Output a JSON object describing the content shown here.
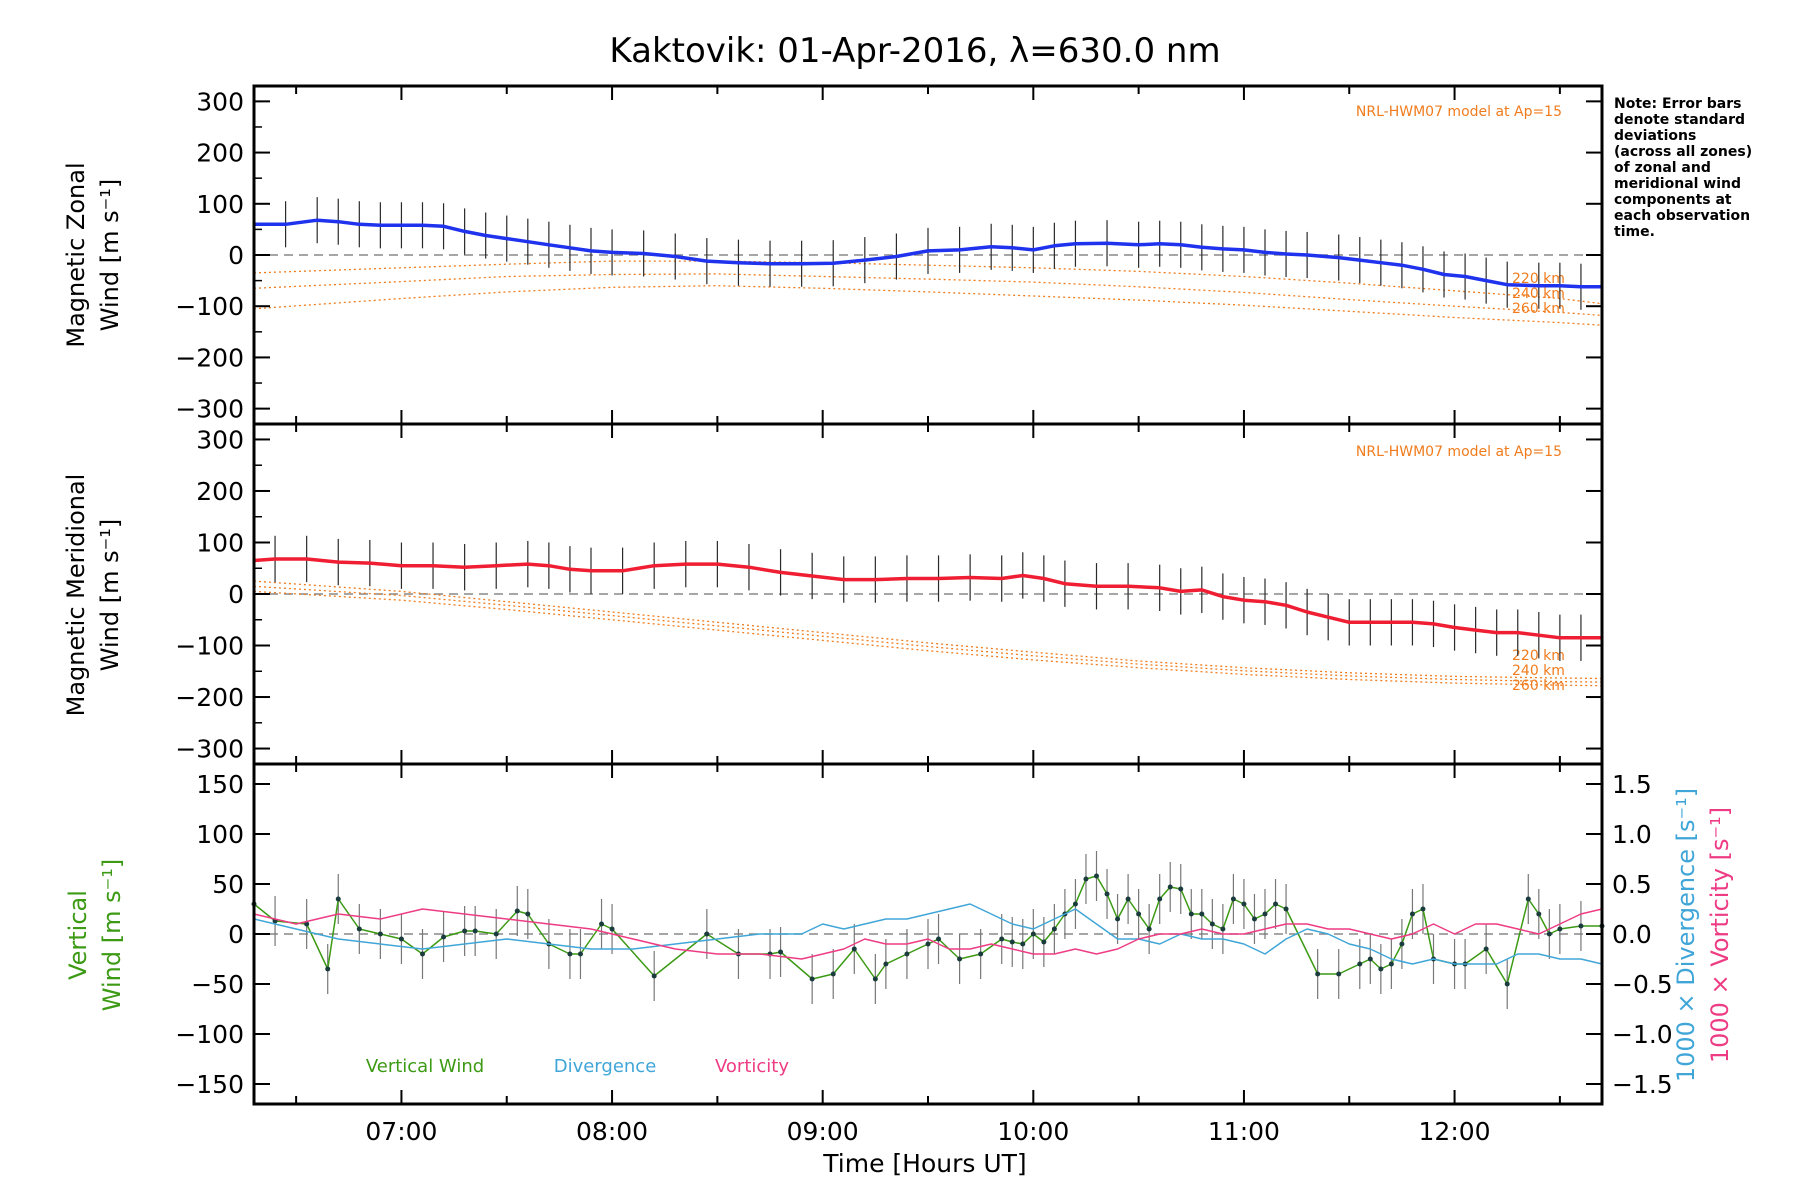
{
  "chart_data": [
    {
      "type": "line",
      "title": "Kaktovik: 01-Apr-2016, λ=630.0 nm",
      "ylabel": [
        "Magnetic Zonal",
        "Wind [m s⁻¹]"
      ],
      "ylim": [
        -330,
        330
      ],
      "yticks": [
        300,
        200,
        100,
        0,
        -100,
        -200,
        -300
      ],
      "xlim": [
        6.3,
        12.7
      ],
      "model_label": "NRL-HWM07 model at Ap=15",
      "model_alt_labels": [
        "220 km",
        "240 km",
        "260 km"
      ],
      "note": [
        "Note: Error bars",
        "denote standard",
        "deviations",
        "(across all zones)",
        "of zonal and",
        "meridional wind",
        "components at",
        "each observation",
        "time."
      ],
      "series": [
        {
          "name": "",
          "color": "#1f32ee",
          "x": [
            6.3,
            6.45,
            6.6,
            6.7,
            6.8,
            6.9,
            7.0,
            7.1,
            7.2,
            7.3,
            7.4,
            7.5,
            7.6,
            7.7,
            7.8,
            7.9,
            8.0,
            8.15,
            8.3,
            8.45,
            8.6,
            8.75,
            8.9,
            9.05,
            9.2,
            9.35,
            9.5,
            9.65,
            9.8,
            9.9,
            10.0,
            10.1,
            10.2,
            10.35,
            10.5,
            10.6,
            10.7,
            10.8,
            10.9,
            11.0,
            11.1,
            11.2,
            11.3,
            11.45,
            11.55,
            11.65,
            11.75,
            11.85,
            11.95,
            12.05,
            12.15,
            12.25,
            12.4,
            12.5,
            12.6,
            12.7
          ],
          "values": [
            60,
            60,
            68,
            65,
            60,
            58,
            58,
            58,
            56,
            46,
            38,
            32,
            26,
            20,
            14,
            8,
            5,
            3,
            -3,
            -12,
            -15,
            -17,
            -17,
            -16,
            -10,
            -3,
            8,
            10,
            16,
            14,
            10,
            18,
            22,
            23,
            20,
            22,
            20,
            15,
            12,
            10,
            5,
            2,
            0,
            -5,
            -10,
            -15,
            -20,
            -28,
            -38,
            -42,
            -50,
            -58,
            -60,
            -60,
            -62,
            -62
          ]
        }
      ],
      "model_curves": [
        {
          "name": "220 km",
          "x": [
            6.3,
            7.0,
            7.5,
            8.0,
            8.5,
            9.0,
            9.5,
            10.0,
            10.5,
            11.0,
            11.5,
            12.0,
            12.5,
            12.7
          ],
          "values": [
            -35,
            -25,
            -18,
            -12,
            -12,
            -15,
            -20,
            -25,
            -32,
            -42,
            -55,
            -70,
            -85,
            -95
          ]
        },
        {
          "name": "240 km",
          "x": [
            6.3,
            7.0,
            7.5,
            8.0,
            8.5,
            9.0,
            9.5,
            10.0,
            10.5,
            11.0,
            11.5,
            12.0,
            12.5,
            12.7
          ],
          "values": [
            -65,
            -52,
            -42,
            -38,
            -37,
            -42,
            -47,
            -53,
            -62,
            -73,
            -87,
            -100,
            -112,
            -118
          ]
        },
        {
          "name": "260 km",
          "x": [
            6.3,
            7.0,
            7.5,
            8.0,
            8.5,
            9.0,
            9.5,
            10.0,
            10.5,
            11.0,
            11.5,
            12.0,
            12.5,
            12.7
          ],
          "values": [
            -105,
            -85,
            -72,
            -63,
            -60,
            -65,
            -72,
            -80,
            -88,
            -98,
            -110,
            -122,
            -132,
            -137
          ]
        }
      ]
    },
    {
      "type": "line",
      "ylabel": [
        "Magnetic Meridional",
        "Wind [m s⁻¹]"
      ],
      "ylim": [
        -330,
        330
      ],
      "yticks": [
        300,
        200,
        100,
        0,
        -100,
        -200,
        -300
      ],
      "xlim": [
        6.3,
        12.7
      ],
      "model_label": "NRL-HWM07 model at Ap=15",
      "model_alt_labels": [
        "220 km",
        "240 km",
        "260 km"
      ],
      "series": [
        {
          "name": "",
          "color": "#f01e32",
          "x": [
            6.3,
            6.4,
            6.55,
            6.7,
            6.85,
            7.0,
            7.15,
            7.3,
            7.45,
            7.6,
            7.7,
            7.8,
            7.9,
            8.05,
            8.2,
            8.35,
            8.5,
            8.65,
            8.8,
            8.95,
            9.1,
            9.25,
            9.4,
            9.55,
            9.7,
            9.85,
            9.95,
            10.05,
            10.15,
            10.3,
            10.45,
            10.6,
            10.7,
            10.8,
            10.9,
            11.0,
            11.1,
            11.2,
            11.3,
            11.4,
            11.5,
            11.6,
            11.7,
            11.8,
            11.9,
            12.0,
            12.1,
            12.2,
            12.3,
            12.4,
            12.5,
            12.6,
            12.7
          ],
          "values": [
            65,
            68,
            68,
            62,
            60,
            55,
            55,
            52,
            55,
            58,
            55,
            48,
            45,
            45,
            55,
            58,
            58,
            52,
            42,
            35,
            28,
            28,
            30,
            30,
            32,
            30,
            36,
            30,
            20,
            15,
            15,
            12,
            5,
            8,
            -5,
            -12,
            -15,
            -22,
            -35,
            -45,
            -55,
            -55,
            -55,
            -55,
            -58,
            -65,
            -70,
            -75,
            -75,
            -80,
            -85,
            -85,
            -85
          ]
        }
      ],
      "model_curves": [
        {
          "name": "220 km",
          "x": [
            6.3,
            7.0,
            7.5,
            8.0,
            8.5,
            9.0,
            9.5,
            10.0,
            10.5,
            11.0,
            11.5,
            12.0,
            12.5,
            12.7
          ],
          "values": [
            25,
            5,
            -15,
            -35,
            -55,
            -75,
            -95,
            -113,
            -130,
            -143,
            -153,
            -160,
            -163,
            -164
          ]
        },
        {
          "name": "240 km",
          "x": [
            6.3,
            7.0,
            7.5,
            8.0,
            8.5,
            9.0,
            9.5,
            10.0,
            10.5,
            11.0,
            11.5,
            12.0,
            12.5,
            12.7
          ],
          "values": [
            15,
            -3,
            -22,
            -42,
            -62,
            -82,
            -102,
            -120,
            -136,
            -149,
            -159,
            -166,
            -170,
            -171
          ]
        },
        {
          "name": "260 km",
          "x": [
            6.3,
            7.0,
            7.5,
            8.0,
            8.5,
            9.0,
            9.5,
            10.0,
            10.5,
            11.0,
            11.5,
            12.0,
            12.5,
            12.7
          ],
          "values": [
            5,
            -12,
            -30,
            -50,
            -70,
            -90,
            -110,
            -128,
            -143,
            -156,
            -166,
            -173,
            -177,
            -178
          ]
        }
      ]
    },
    {
      "type": "line",
      "ylabel": [
        "Vertical",
        "Wind [m s⁻¹]"
      ],
      "ylabel_right": [
        "1000 × Divergence [s⁻¹]",
        "1000 × Vorticity [s⁻¹]"
      ],
      "ylim": [
        -170,
        170
      ],
      "yticks": [
        150,
        100,
        50,
        0,
        -50,
        -100,
        -150
      ],
      "ylim_right": [
        -1.7,
        1.7
      ],
      "yticks_right": [
        "1.5",
        "1.0",
        "0.5",
        "0.0",
        "−0.5",
        "−1.0",
        "−1.5"
      ],
      "xlim": [
        6.3,
        12.7
      ],
      "xticks": [
        "07:00",
        "08:00",
        "09:00",
        "10:00",
        "11:00",
        "12:00"
      ],
      "xlabel": "Time [Hours UT]",
      "series": [
        {
          "name": "Vertical Wind",
          "color": "#3c9a14",
          "x": [
            6.3,
            6.4,
            6.55,
            6.65,
            6.7,
            6.8,
            6.9,
            7.0,
            7.1,
            7.2,
            7.3,
            7.35,
            7.45,
            7.55,
            7.6,
            7.7,
            7.8,
            7.85,
            7.95,
            8.0,
            8.2,
            8.45,
            8.6,
            8.75,
            8.8,
            8.95,
            9.05,
            9.15,
            9.25,
            9.3,
            9.4,
            9.5,
            9.55,
            9.65,
            9.75,
            9.85,
            9.9,
            9.95,
            10.0,
            10.05,
            10.1,
            10.15,
            10.2,
            10.25,
            10.3,
            10.35,
            10.4,
            10.45,
            10.5,
            10.55,
            10.6,
            10.65,
            10.7,
            10.75,
            10.8,
            10.85,
            10.9,
            10.95,
            11.0,
            11.05,
            11.1,
            11.15,
            11.2,
            11.35,
            11.45,
            11.55,
            11.6,
            11.65,
            11.7,
            11.75,
            11.8,
            11.85,
            11.9,
            12.0,
            12.05,
            12.15,
            12.25,
            12.35,
            12.4,
            12.45,
            12.5,
            12.6,
            12.7
          ],
          "values": [
            30,
            13,
            10,
            -35,
            35,
            5,
            0,
            -5,
            -20,
            -3,
            3,
            3,
            0,
            23,
            20,
            -10,
            -20,
            -20,
            10,
            5,
            -42,
            0,
            -20,
            -20,
            -18,
            -45,
            -40,
            -15,
            -45,
            -30,
            -20,
            -10,
            -5,
            -25,
            -20,
            -5,
            -8,
            -10,
            0,
            -8,
            5,
            20,
            30,
            55,
            58,
            40,
            15,
            35,
            20,
            5,
            35,
            47,
            45,
            20,
            20,
            10,
            5,
            35,
            30,
            15,
            20,
            30,
            25,
            -40,
            -40,
            -30,
            -25,
            -35,
            -30,
            -10,
            20,
            25,
            -25,
            -30,
            -30,
            -15,
            -50,
            35,
            20,
            0,
            5,
            8,
            8
          ]
        },
        {
          "name": "Divergence",
          "color": "#40a6d8",
          "scale": "right",
          "x": [
            6.3,
            6.5,
            6.7,
            6.9,
            7.1,
            7.3,
            7.5,
            7.7,
            7.9,
            8.1,
            8.3,
            8.5,
            8.7,
            8.9,
            9.0,
            9.1,
            9.2,
            9.3,
            9.4,
            9.5,
            9.6,
            9.7,
            9.8,
            9.9,
            10.0,
            10.1,
            10.2,
            10.3,
            10.4,
            10.5,
            10.6,
            10.7,
            10.8,
            10.9,
            11.0,
            11.1,
            11.2,
            11.3,
            11.4,
            11.5,
            11.6,
            11.7,
            11.8,
            11.9,
            12.0,
            12.1,
            12.2,
            12.3,
            12.4,
            12.5,
            12.6,
            12.7
          ],
          "values": [
            0.15,
            0.05,
            -0.05,
            -0.1,
            -0.15,
            -0.1,
            -0.05,
            -0.1,
            -0.15,
            -0.15,
            -0.1,
            -0.05,
            0.0,
            0.0,
            0.1,
            0.05,
            0.1,
            0.15,
            0.15,
            0.2,
            0.25,
            0.3,
            0.2,
            0.1,
            0.05,
            0.15,
            0.25,
            0.1,
            -0.05,
            -0.05,
            -0.1,
            0.0,
            -0.05,
            -0.05,
            -0.1,
            -0.2,
            -0.05,
            0.05,
            0.0,
            -0.1,
            -0.15,
            -0.25,
            -0.3,
            -0.25,
            -0.3,
            -0.3,
            -0.3,
            -0.2,
            -0.2,
            -0.25,
            -0.25,
            -0.3
          ]
        },
        {
          "name": "Vorticity",
          "color": "#ee3c84",
          "scale": "right",
          "x": [
            6.3,
            6.5,
            6.7,
            6.9,
            7.1,
            7.3,
            7.5,
            7.7,
            7.9,
            8.1,
            8.3,
            8.5,
            8.7,
            8.9,
            9.0,
            9.1,
            9.2,
            9.3,
            9.4,
            9.5,
            9.6,
            9.7,
            9.8,
            9.9,
            10.0,
            10.1,
            10.2,
            10.3,
            10.4,
            10.5,
            10.6,
            10.7,
            10.8,
            10.9,
            11.0,
            11.1,
            11.2,
            11.3,
            11.4,
            11.5,
            11.6,
            11.7,
            11.8,
            11.9,
            12.0,
            12.1,
            12.2,
            12.3,
            12.4,
            12.5,
            12.6,
            12.7
          ],
          "values": [
            0.2,
            0.1,
            0.2,
            0.15,
            0.25,
            0.2,
            0.15,
            0.1,
            0.05,
            -0.05,
            -0.15,
            -0.2,
            -0.2,
            -0.25,
            -0.2,
            -0.15,
            -0.05,
            -0.1,
            -0.1,
            -0.05,
            -0.15,
            -0.15,
            -0.1,
            -0.15,
            -0.2,
            -0.2,
            -0.15,
            -0.2,
            -0.15,
            -0.05,
            0.0,
            0.0,
            0.05,
            0.0,
            0.0,
            0.05,
            0.1,
            0.1,
            0.05,
            0.05,
            0.0,
            -0.05,
            0.0,
            0.1,
            0.0,
            0.1,
            0.1,
            0.05,
            0.0,
            0.1,
            0.2,
            0.25
          ]
        }
      ],
      "legend": [
        "Vertical Wind",
        "Divergence",
        "Vorticity"
      ]
    }
  ]
}
